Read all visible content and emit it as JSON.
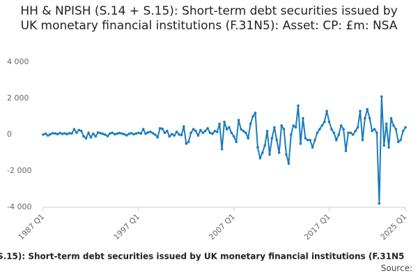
{
  "chart_data": {
    "type": "line",
    "title": "HH & NPISH (S.14 + S.15): Short-term debt securities issued by UK monetary financial institutions (F.31N5): Asset: CP: £m: NSA",
    "footer_title": "S.15): Short-term debt securities issued by UK monetary financial institutions (F.31N5",
    "source": "Source:",
    "color": "#1a7bbd",
    "ylim": [
      -4000,
      4000
    ],
    "yticks": [
      {
        "value": 4000,
        "label": "4 000"
      },
      {
        "value": 2000,
        "label": "2 000"
      },
      0,
      {
        "value": -2000,
        "label": "-2 000"
      },
      {
        "value": -4000,
        "label": "-4 000"
      }
    ],
    "categories": [
      "1987 Q1",
      null,
      null,
      null,
      null,
      null,
      null,
      null,
      null,
      null,
      null,
      null,
      null,
      null,
      null,
      null,
      null,
      null,
      null,
      null,
      null,
      null,
      null,
      null,
      null,
      null,
      null,
      null,
      null,
      null,
      null,
      null,
      null,
      null,
      null,
      null,
      null,
      null,
      null,
      null,
      "1997 Q1",
      null,
      null,
      null,
      null,
      null,
      null,
      null,
      null,
      null,
      null,
      null,
      null,
      null,
      null,
      null,
      null,
      null,
      null,
      null,
      null,
      null,
      null,
      null,
      null,
      null,
      null,
      null,
      null,
      null,
      null,
      null,
      null,
      null,
      null,
      null,
      null,
      null,
      null,
      null,
      "2007 Q1",
      null,
      null,
      null,
      null,
      null,
      null,
      null,
      null,
      null,
      null,
      null,
      null,
      null,
      null,
      null,
      null,
      null,
      null,
      null,
      null,
      null,
      null,
      null,
      null,
      null,
      null,
      null,
      null,
      null,
      null,
      null,
      null,
      null,
      null,
      null,
      null,
      null,
      null,
      null,
      "2017 Q1",
      null,
      null,
      null,
      null,
      null,
      null,
      null,
      null,
      null,
      null,
      null,
      null,
      null,
      null,
      null,
      null,
      null,
      null,
      null,
      null,
      null,
      null,
      null,
      null,
      null,
      null,
      null,
      null,
      null,
      null,
      null,
      "2025 Q1"
    ],
    "values": [
      0,
      50,
      -50,
      20,
      80,
      60,
      30,
      90,
      40,
      70,
      30,
      80,
      60,
      300,
      100,
      250,
      200,
      -100,
      -200,
      100,
      -150,
      50,
      -100,
      120,
      80,
      40,
      0,
      -80,
      60,
      100,
      20,
      50,
      90,
      60,
      20,
      -40,
      40,
      80,
      20,
      60,
      100,
      60,
      300,
      50,
      120,
      150,
      80,
      0,
      -150,
      350,
      320,
      100,
      200,
      -100,
      30,
      -50,
      150,
      10,
      -30,
      450,
      -500,
      -400,
      100,
      300,
      200,
      -50,
      250,
      100,
      200,
      350,
      100,
      50,
      200,
      150,
      600,
      -800,
      700,
      300,
      400,
      100,
      -100,
      -400,
      800,
      300,
      200,
      100,
      -200,
      600,
      1000,
      1200,
      -700,
      -1300,
      -1000,
      -600,
      200,
      -1100,
      -200,
      400,
      -300,
      -1000,
      500,
      300,
      -1100,
      -1600,
      0,
      500,
      400,
      1600,
      -500,
      900,
      -200,
      -300,
      -300,
      -700,
      -300,
      100,
      300,
      500,
      700,
      1300,
      700,
      300,
      100,
      -300,
      0,
      500,
      300,
      -900,
      100,
      100,
      0,
      200,
      400,
      1300,
      -300,
      900,
      1400,
      900,
      200,
      300,
      100,
      -3800,
      2100,
      -600,
      600,
      -700,
      900,
      500,
      300,
      -400,
      -300,
      200,
      400
    ]
  }
}
